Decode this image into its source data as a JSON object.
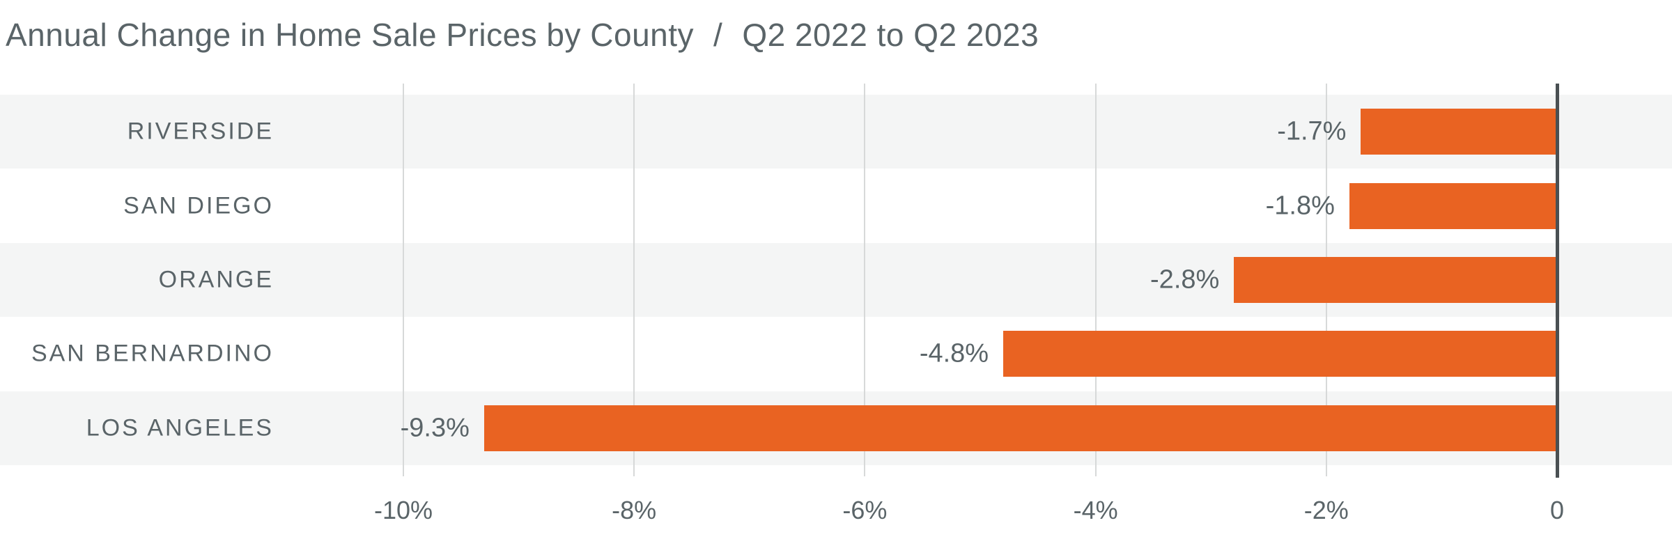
{
  "header": {
    "title": "Annual Change in Home Sale Prices by County",
    "separator": "/",
    "subtitle": "Q2 2022 to Q2 2023"
  },
  "chart_data": {
    "type": "bar",
    "orientation": "horizontal",
    "title": "Annual Change in Home Sale Prices by County / Q2 2022 to Q2 2023",
    "categories": [
      "RIVERSIDE",
      "SAN DIEGO",
      "ORANGE",
      "SAN BERNARDINO",
      "LOS ANGELES"
    ],
    "values": [
      -1.7,
      -1.8,
      -2.8,
      -4.8,
      -9.3
    ],
    "value_labels": [
      "-1.7%",
      "-1.8%",
      "-2.8%",
      "-4.8%",
      "-9.3%"
    ],
    "xticks": [
      {
        "label": "-10%",
        "value": -10
      },
      {
        "label": "-8%",
        "value": -8
      },
      {
        "label": "-6%",
        "value": -6
      },
      {
        "label": "-4%",
        "value": -4
      },
      {
        "label": "-2%",
        "value": -2
      },
      {
        "label": "0",
        "value": 0
      }
    ],
    "xlabel": "",
    "ylabel": "",
    "xlim": [
      -13.5,
      1
    ],
    "grid": true,
    "legend": false,
    "colors": {
      "bar": "#E96322",
      "row_stripe": "#F4F5F5",
      "gridline": "#D7D9D9",
      "zero_axis": "#4A5053",
      "text": "#5A6468"
    }
  }
}
